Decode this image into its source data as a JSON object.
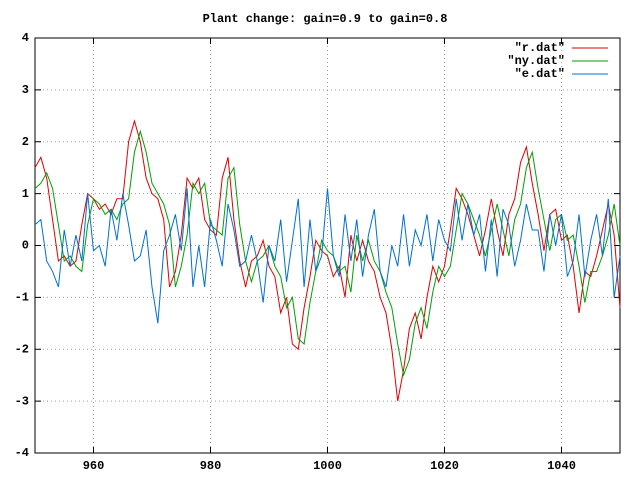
{
  "chart_data": {
    "type": "line",
    "title": "Plant change: gain=0.9 to gain=0.8",
    "x": [
      950,
      951,
      952,
      953,
      954,
      955,
      956,
      957,
      958,
      959,
      960,
      961,
      962,
      963,
      964,
      965,
      966,
      967,
      968,
      969,
      970,
      971,
      972,
      973,
      974,
      975,
      976,
      977,
      978,
      979,
      980,
      981,
      982,
      983,
      984,
      985,
      986,
      987,
      988,
      989,
      990,
      991,
      992,
      993,
      994,
      995,
      996,
      997,
      998,
      999,
      1000,
      1001,
      1002,
      1003,
      1004,
      1005,
      1006,
      1007,
      1008,
      1009,
      1010,
      1011,
      1012,
      1013,
      1014,
      1015,
      1016,
      1017,
      1018,
      1019,
      1020,
      1021,
      1022,
      1023,
      1024,
      1025,
      1026,
      1027,
      1028,
      1029,
      1030,
      1031,
      1032,
      1033,
      1034,
      1035,
      1036,
      1037,
      1038,
      1039,
      1040,
      1041,
      1042,
      1043,
      1044,
      1045,
      1046,
      1047,
      1048,
      1049,
      1050
    ],
    "series": [
      {
        "name": "\"r.dat\"",
        "color": "#e00000",
        "values": [
          1.5,
          1.7,
          1.3,
          0.5,
          -0.3,
          -0.2,
          -0.4,
          -0.3,
          0.4,
          1.0,
          0.9,
          0.7,
          0.8,
          0.6,
          0.9,
          0.9,
          2.0,
          2.4,
          2.0,
          1.3,
          1.0,
          0.9,
          0.5,
          -0.8,
          -0.5,
          0.2,
          1.3,
          1.1,
          1.3,
          0.5,
          0.3,
          0.2,
          1.3,
          1.7,
          0.5,
          -0.3,
          -0.8,
          -0.3,
          -0.2,
          0.1,
          -0.4,
          -0.6,
          -1.3,
          -1.0,
          -1.9,
          -2.0,
          -1.2,
          -0.6,
          0.1,
          -0.1,
          -0.2,
          -0.6,
          -0.4,
          -1.0,
          0.2,
          -0.3,
          0.1,
          -0.3,
          -0.5,
          -1.0,
          -1.3,
          -2.0,
          -3.0,
          -2.4,
          -1.6,
          -1.3,
          -1.8,
          -1.0,
          -0.4,
          -0.7,
          -0.4,
          0.3,
          1.1,
          0.9,
          0.6,
          0.2,
          -0.2,
          0.3,
          0.9,
          0.3,
          -0.2,
          0.6,
          0.9,
          1.6,
          1.9,
          1.2,
          0.6,
          -0.1,
          0.6,
          0.7,
          0.1,
          0.2,
          -0.4,
          -1.3,
          -0.5,
          -0.6,
          -0.2,
          0.3,
          0.8,
          0.2,
          -1.2
        ]
      },
      {
        "name": "\"ny.dat\"",
        "color": "#00a000",
        "values": [
          1.1,
          1.2,
          1.4,
          1.1,
          0.4,
          -0.3,
          -0.2,
          -0.4,
          -0.5,
          0.4,
          0.9,
          0.8,
          0.6,
          0.7,
          0.5,
          0.8,
          0.9,
          1.8,
          2.2,
          1.8,
          1.2,
          1.0,
          0.8,
          0.4,
          -0.8,
          -0.4,
          0.2,
          1.2,
          1.0,
          1.2,
          0.4,
          0.3,
          0.2,
          1.3,
          1.5,
          0.4,
          -0.3,
          -0.7,
          -0.3,
          -0.2,
          0.0,
          -0.4,
          -0.6,
          -1.2,
          -1.0,
          -1.8,
          -1.9,
          -1.1,
          -0.5,
          0.1,
          -0.1,
          -0.2,
          -0.5,
          -0.4,
          -0.9,
          0.2,
          -0.3,
          0.1,
          -0.3,
          -0.5,
          -0.9,
          -1.2,
          -1.9,
          -2.5,
          -2.2,
          -1.5,
          -1.2,
          -1.6,
          -0.9,
          -0.4,
          -0.6,
          -0.4,
          0.3,
          1.0,
          0.8,
          0.5,
          0.2,
          -0.2,
          0.3,
          0.8,
          0.3,
          -0.2,
          0.5,
          0.8,
          1.5,
          1.8,
          1.1,
          0.5,
          -0.1,
          0.5,
          0.6,
          0.1,
          0.2,
          -0.4,
          -1.1,
          -0.5,
          -0.5,
          -0.2,
          0.2,
          0.8,
          0.0
        ]
      },
      {
        "name": "\"e.dat\"",
        "color": "#0070d0",
        "values": [
          0.4,
          0.5,
          -0.3,
          -0.5,
          -0.8,
          0.3,
          -0.4,
          0.2,
          -0.3,
          1.0,
          -0.1,
          0.0,
          -0.4,
          0.7,
          0.1,
          1.0,
          0.4,
          -0.3,
          -0.2,
          0.3,
          -0.8,
          -1.5,
          -0.1,
          0.2,
          0.6,
          -0.1,
          1.1,
          -0.8,
          0.0,
          -0.8,
          0.5,
          0.1,
          -0.4,
          0.8,
          0.3,
          -0.4,
          -0.3,
          0.2,
          -0.3,
          -1.1,
          0.0,
          -0.3,
          0.5,
          -0.7,
          0.1,
          0.9,
          -0.8,
          0.5,
          -0.5,
          -0.2,
          1.1,
          -0.2,
          -0.6,
          0.6,
          -0.3,
          0.5,
          -0.6,
          0.2,
          0.7,
          -0.5,
          -0.8,
          0.0,
          -0.4,
          0.6,
          -0.4,
          0.3,
          0.0,
          0.6,
          -0.3,
          0.5,
          0.1,
          -0.1,
          0.9,
          0.1,
          0.8,
          0.2,
          0.6,
          -0.5,
          0.5,
          -0.6,
          0.7,
          0.4,
          -0.4,
          0.1,
          0.8,
          0.3,
          0.3,
          -0.5,
          0.6,
          0.0,
          0.6,
          -0.6,
          -0.3,
          0.6,
          -0.6,
          0.1,
          0.6,
          -0.2,
          0.9,
          -1.0,
          -0.2
        ]
      }
    ],
    "xlim": [
      950,
      1050
    ],
    "xticks": [
      960,
      980,
      1000,
      1020,
      1040
    ],
    "ylim": [
      -4,
      4
    ],
    "yticks": [
      -4,
      -3,
      -2,
      -1,
      0,
      1,
      2,
      3,
      4
    ],
    "grid": true,
    "legend": "top-right"
  }
}
